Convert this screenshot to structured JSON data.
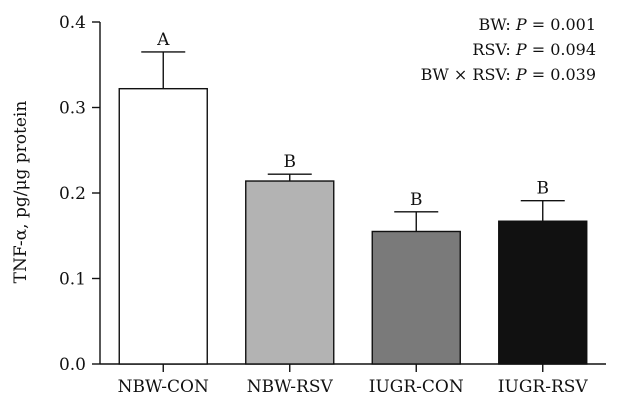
{
  "chart_data": {
    "type": "bar",
    "categories": [
      "NBW-CON",
      "NBW-RSV",
      "IUGR-CON",
      "IUGR-RSV"
    ],
    "values": [
      0.322,
      0.214,
      0.155,
      0.167
    ],
    "errors": [
      0.043,
      0.008,
      0.023,
      0.024
    ],
    "significance_letters": [
      "A",
      "B",
      "B",
      "B"
    ],
    "bar_colors": [
      "#ffffff",
      "#b3b3b3",
      "#7a7a7a",
      "#111111"
    ],
    "ylabel": "TNF-α, pg/μg protein",
    "ylim": [
      0,
      0.4
    ],
    "yticks": [
      "0.0",
      "0.1",
      "0.2",
      "0.3",
      "0.4"
    ],
    "annotations": [
      {
        "name": "BW",
        "p": "0.001"
      },
      {
        "name": "RSV",
        "p": "0.094"
      },
      {
        "name": "BW × RSV",
        "p": "0.039"
      }
    ],
    "p_symbol": "P",
    "grid": false
  }
}
